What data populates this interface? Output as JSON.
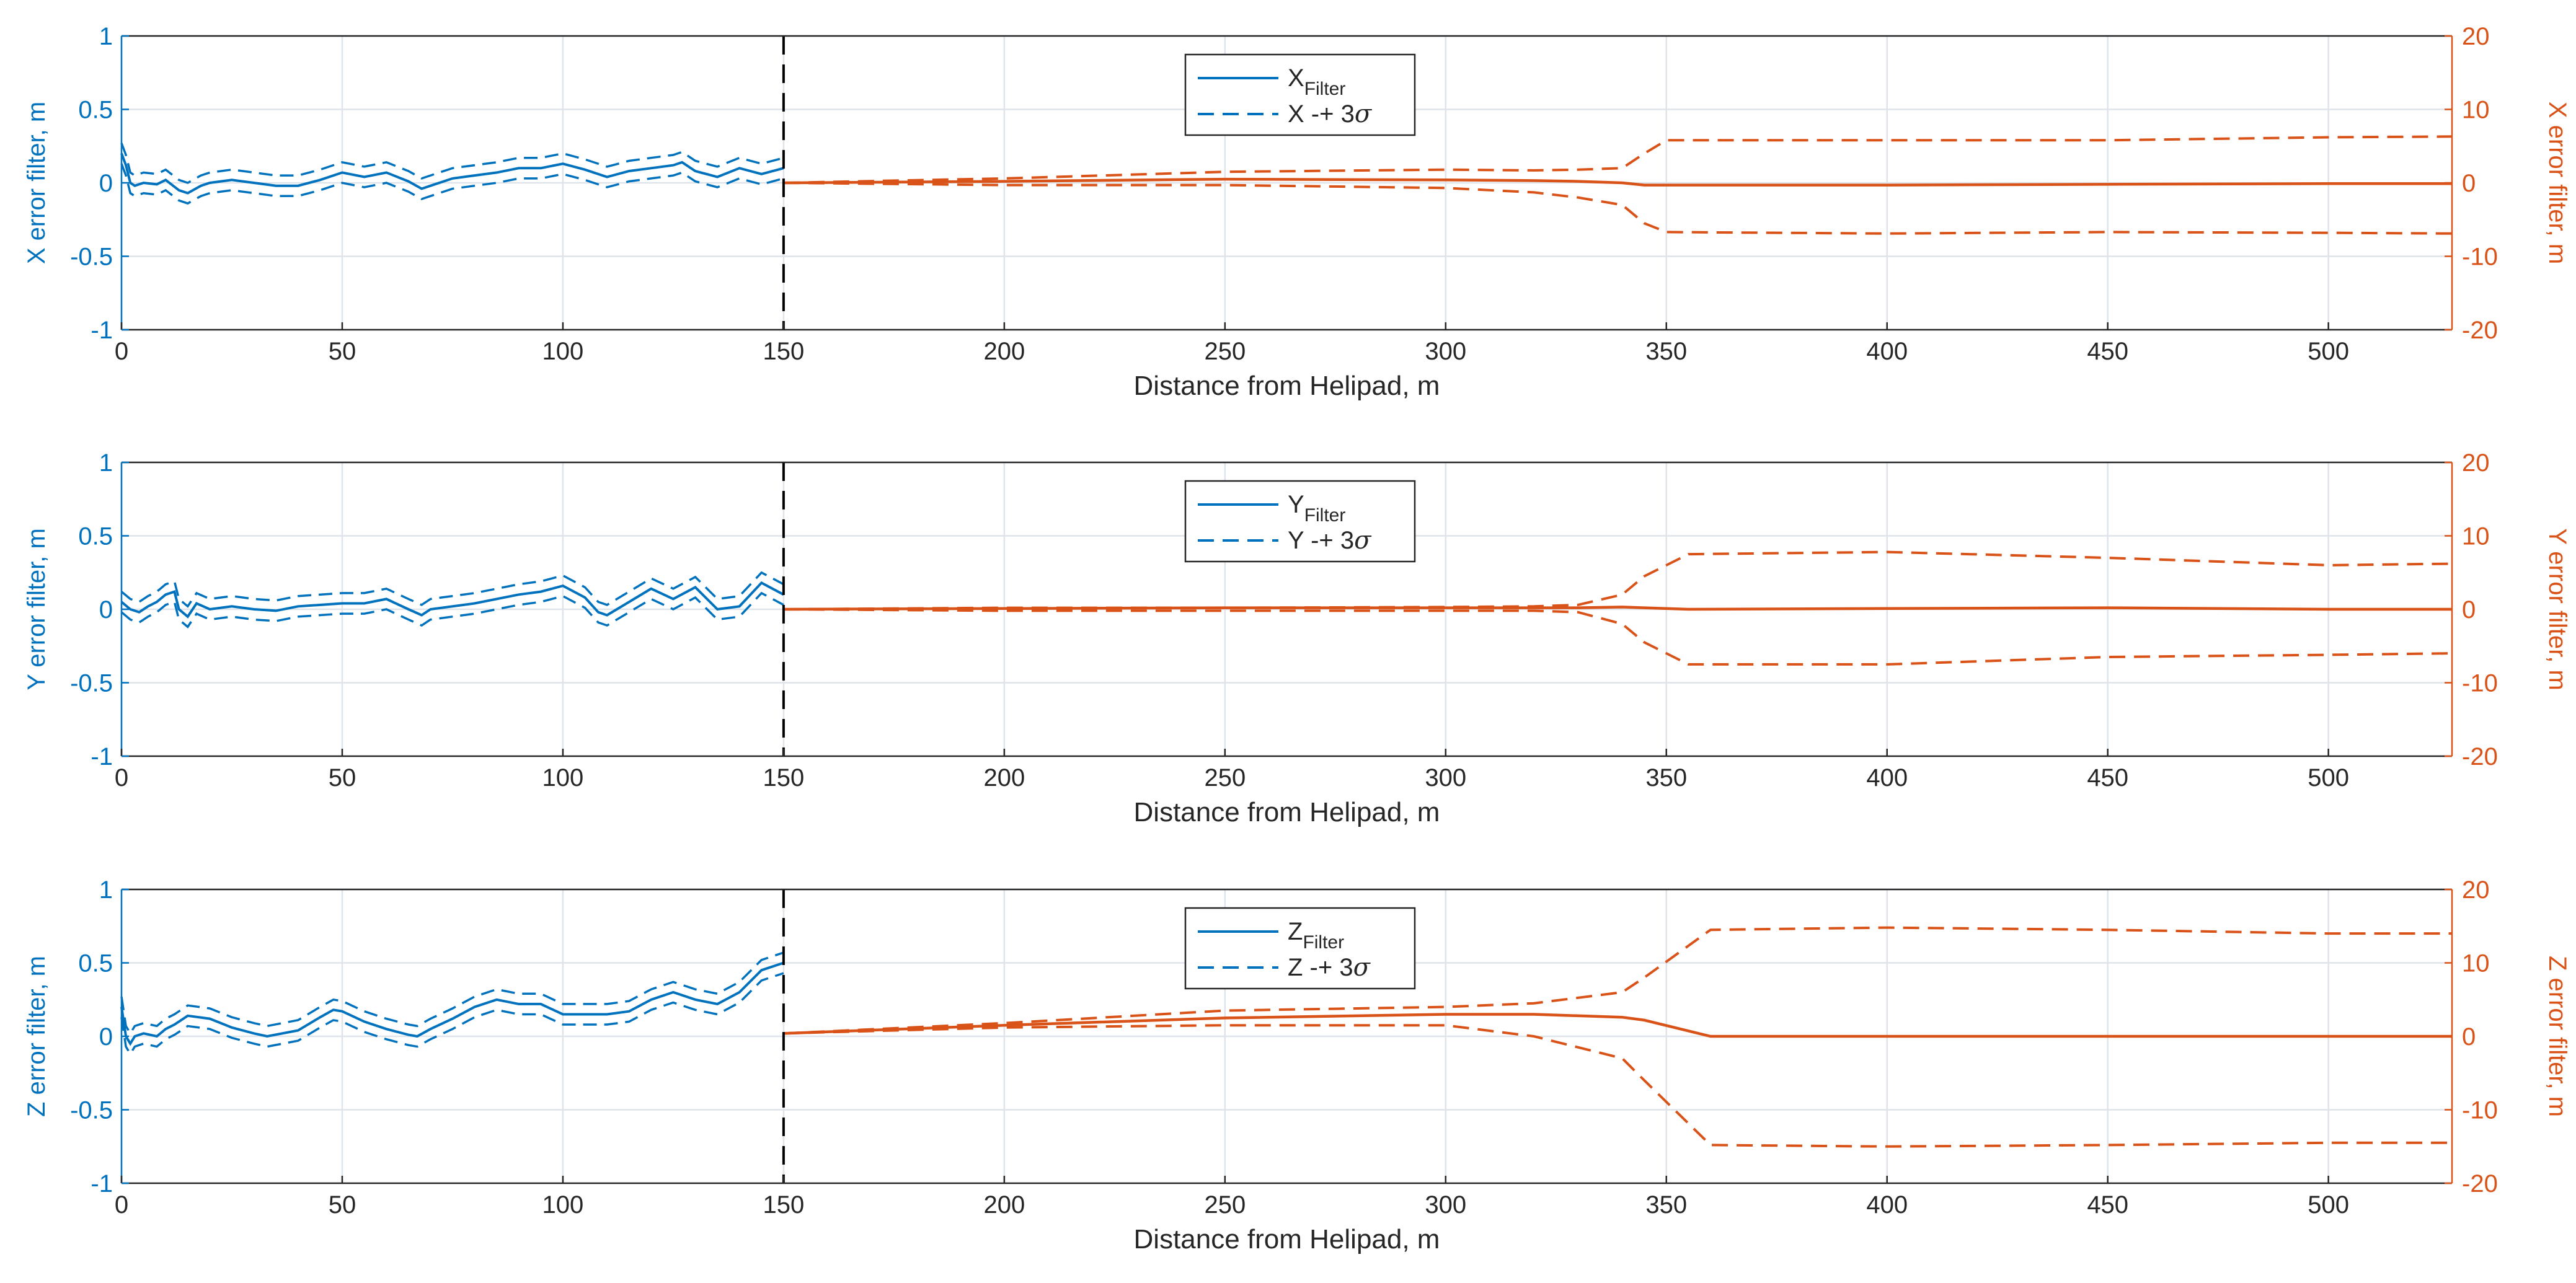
{
  "colors": {
    "left_series": "#0072bd",
    "right_series": "#d95319",
    "grid": "#dfe4ea",
    "axis_box": "#262626",
    "marker": "#000000"
  },
  "chart_data": [
    {
      "type": "line",
      "key": "x",
      "xlabel": "Distance from Helipad, m",
      "ylabel_left": "X error filter, m",
      "ylabel_right": "X error filter, m",
      "xlim": [
        0,
        528
      ],
      "ylim_left": [
        -1,
        1
      ],
      "ylim_right": [
        -20,
        20
      ],
      "xticks": [
        0,
        50,
        100,
        150,
        200,
        250,
        300,
        350,
        400,
        450,
        500
      ],
      "yticks_left": [
        -1,
        -0.5,
        0,
        0.5,
        1
      ],
      "yticks_left_labels": [
        "-1",
        "-0.5",
        "0",
        "0.5",
        "1"
      ],
      "yticks_right": [
        -20,
        -10,
        0,
        10,
        20
      ],
      "yticks_right_labels": [
        "-20",
        "-10",
        "0",
        "10",
        "20"
      ],
      "grid": true,
      "vline_x": 150,
      "legend": {
        "location": "top-center",
        "entries": [
          {
            "base": "X",
            "sub": "Filter",
            "style": "solid"
          },
          {
            "base": "X -+ 3",
            "greek": "σ",
            "style": "dashed"
          }
        ]
      },
      "left_series": {
        "axis": "left",
        "x": [
          0,
          1,
          2,
          3,
          5,
          8,
          10,
          13,
          15,
          18,
          20,
          25,
          30,
          35,
          40,
          45,
          50,
          55,
          60,
          65,
          68,
          70,
          75,
          80,
          85,
          90,
          95,
          100,
          105,
          110,
          115,
          120,
          125,
          127,
          130,
          135,
          140,
          145,
          150
        ],
        "values": [
          0.2,
          0.12,
          0.0,
          -0.02,
          0.0,
          -0.01,
          0.02,
          -0.05,
          -0.07,
          -0.02,
          0.0,
          0.02,
          0.0,
          -0.02,
          -0.02,
          0.02,
          0.07,
          0.04,
          0.07,
          0.01,
          -0.04,
          -0.02,
          0.03,
          0.05,
          0.07,
          0.1,
          0.1,
          0.13,
          0.09,
          0.04,
          0.08,
          0.1,
          0.12,
          0.14,
          0.08,
          0.04,
          0.1,
          0.06,
          0.1
        ],
        "band": 0.07
      },
      "right_series": {
        "axis": "right",
        "x": [
          150,
          200,
          250,
          300,
          320,
          330,
          340,
          345,
          350,
          400,
          450,
          500,
          528
        ],
        "values": [
          0,
          0.2,
          0.5,
          0.4,
          0.3,
          0.2,
          0.0,
          -0.3,
          -0.3,
          -0.3,
          -0.2,
          -0.1,
          -0.1
        ],
        "upper": [
          0,
          0.6,
          1.5,
          1.8,
          1.7,
          1.8,
          2.0,
          4.0,
          5.8,
          5.8,
          5.8,
          6.2,
          6.3
        ],
        "lower": [
          0,
          -0.3,
          -0.3,
          -0.7,
          -1.3,
          -2.0,
          -3.0,
          -5.5,
          -6.7,
          -6.9,
          -6.7,
          -6.8,
          -6.9
        ]
      }
    },
    {
      "type": "line",
      "key": "y",
      "xlabel": "Distance from Helipad, m",
      "ylabel_left": "Y error filter, m",
      "ylabel_right": "Y error filter, m",
      "xlim": [
        0,
        528
      ],
      "ylim_left": [
        -1,
        1
      ],
      "ylim_right": [
        -20,
        20
      ],
      "xticks": [
        0,
        50,
        100,
        150,
        200,
        250,
        300,
        350,
        400,
        450,
        500
      ],
      "yticks_left": [
        -1,
        -0.5,
        0,
        0.5,
        1
      ],
      "yticks_left_labels": [
        "-1",
        "-0.5",
        "0",
        "0.5",
        "1"
      ],
      "yticks_right": [
        -20,
        -10,
        0,
        10,
        20
      ],
      "yticks_right_labels": [
        "-20",
        "-10",
        "0",
        "10",
        "20"
      ],
      "grid": true,
      "vline_x": 150,
      "legend": {
        "location": "top-center",
        "entries": [
          {
            "base": "Y",
            "sub": "Filter",
            "style": "solid"
          },
          {
            "base": "Y -+ 3",
            "greek": "σ",
            "style": "dashed"
          }
        ]
      },
      "left_series": {
        "axis": "left",
        "x": [
          0,
          2,
          4,
          6,
          8,
          10,
          12,
          13,
          15,
          17,
          20,
          25,
          30,
          35,
          40,
          50,
          55,
          60,
          65,
          68,
          70,
          80,
          90,
          95,
          100,
          105,
          108,
          110,
          120,
          125,
          130,
          135,
          140,
          145,
          150
        ],
        "values": [
          0.05,
          0.0,
          -0.02,
          0.02,
          0.05,
          0.1,
          0.12,
          0.0,
          -0.05,
          0.04,
          0.0,
          0.02,
          0.0,
          -0.01,
          0.02,
          0.04,
          0.04,
          0.07,
          0.0,
          -0.04,
          0.0,
          0.04,
          0.1,
          0.12,
          0.16,
          0.08,
          -0.02,
          -0.04,
          0.14,
          0.07,
          0.15,
          0.0,
          0.02,
          0.18,
          0.1
        ],
        "band": 0.07
      },
      "right_series": {
        "axis": "right",
        "x": [
          150,
          200,
          250,
          300,
          320,
          330,
          340,
          345,
          355,
          400,
          450,
          500,
          528
        ],
        "values": [
          0,
          0.1,
          0.2,
          0.2,
          0.2,
          0.2,
          0.3,
          0.2,
          0.0,
          0.1,
          0.2,
          0.0,
          0.0
        ],
        "upper": [
          0,
          0.2,
          0.2,
          0.3,
          0.4,
          0.6,
          2.0,
          4.5,
          7.5,
          7.8,
          7.0,
          6.0,
          6.2
        ],
        "lower": [
          0,
          -0.2,
          -0.2,
          -0.2,
          -0.2,
          -0.4,
          -2.0,
          -4.5,
          -7.5,
          -7.5,
          -6.5,
          -6.2,
          -6.0
        ]
      }
    },
    {
      "type": "line",
      "key": "z",
      "xlabel": "Distance from Helipad, m",
      "ylabel_left": "Z error filter, m",
      "ylabel_right": "Z error filter, m",
      "xlim": [
        0,
        528
      ],
      "ylim_left": [
        -1,
        1
      ],
      "ylim_right": [
        -20,
        20
      ],
      "xticks": [
        0,
        50,
        100,
        150,
        200,
        250,
        300,
        350,
        400,
        450,
        500
      ],
      "yticks_left": [
        -1,
        -0.5,
        0,
        0.5,
        1
      ],
      "yticks_left_labels": [
        "-1",
        "-0.5",
        "0",
        "0.5",
        "1"
      ],
      "yticks_right": [
        -20,
        -10,
        0,
        10,
        20
      ],
      "yticks_right_labels": [
        "-20",
        "-10",
        "0",
        "10",
        "20"
      ],
      "grid": true,
      "vline_x": 150,
      "legend": {
        "location": "top-center",
        "entries": [
          {
            "base": "Z",
            "sub": "Filter",
            "style": "solid"
          },
          {
            "base": "Z -+ 3",
            "greek": "σ",
            "style": "dashed"
          }
        ]
      },
      "left_series": {
        "axis": "left",
        "x": [
          0,
          1,
          2,
          3,
          5,
          8,
          10,
          12,
          13,
          15,
          20,
          25,
          30,
          33,
          40,
          45,
          48,
          50,
          55,
          60,
          65,
          67,
          70,
          75,
          80,
          85,
          90,
          95,
          100,
          105,
          110,
          115,
          120,
          125,
          130,
          135,
          140,
          145,
          150
        ],
        "values": [
          0.2,
          0.0,
          -0.05,
          0.0,
          0.02,
          0.0,
          0.05,
          0.08,
          0.1,
          0.14,
          0.12,
          0.06,
          0.02,
          0.0,
          0.04,
          0.13,
          0.18,
          0.17,
          0.1,
          0.05,
          0.01,
          0.0,
          0.05,
          0.12,
          0.2,
          0.25,
          0.22,
          0.22,
          0.15,
          0.15,
          0.15,
          0.17,
          0.25,
          0.3,
          0.25,
          0.22,
          0.3,
          0.45,
          0.5
        ],
        "band": 0.07
      },
      "right_series": {
        "axis": "right",
        "x": [
          150,
          200,
          250,
          300,
          320,
          340,
          345,
          360,
          400,
          450,
          500,
          528
        ],
        "values": [
          0.4,
          1.5,
          2.5,
          3.0,
          3.0,
          2.6,
          2.2,
          0.0,
          0.0,
          0.0,
          0.0,
          0.0
        ],
        "upper": [
          0.4,
          1.8,
          3.5,
          4.0,
          4.5,
          6.0,
          8.0,
          14.5,
          14.8,
          14.5,
          14.0,
          14.0
        ],
        "lower": [
          0.4,
          1.2,
          1.5,
          1.5,
          0.0,
          -3.0,
          -6.0,
          -14.8,
          -15.0,
          -14.8,
          -14.5,
          -14.5
        ]
      }
    }
  ]
}
